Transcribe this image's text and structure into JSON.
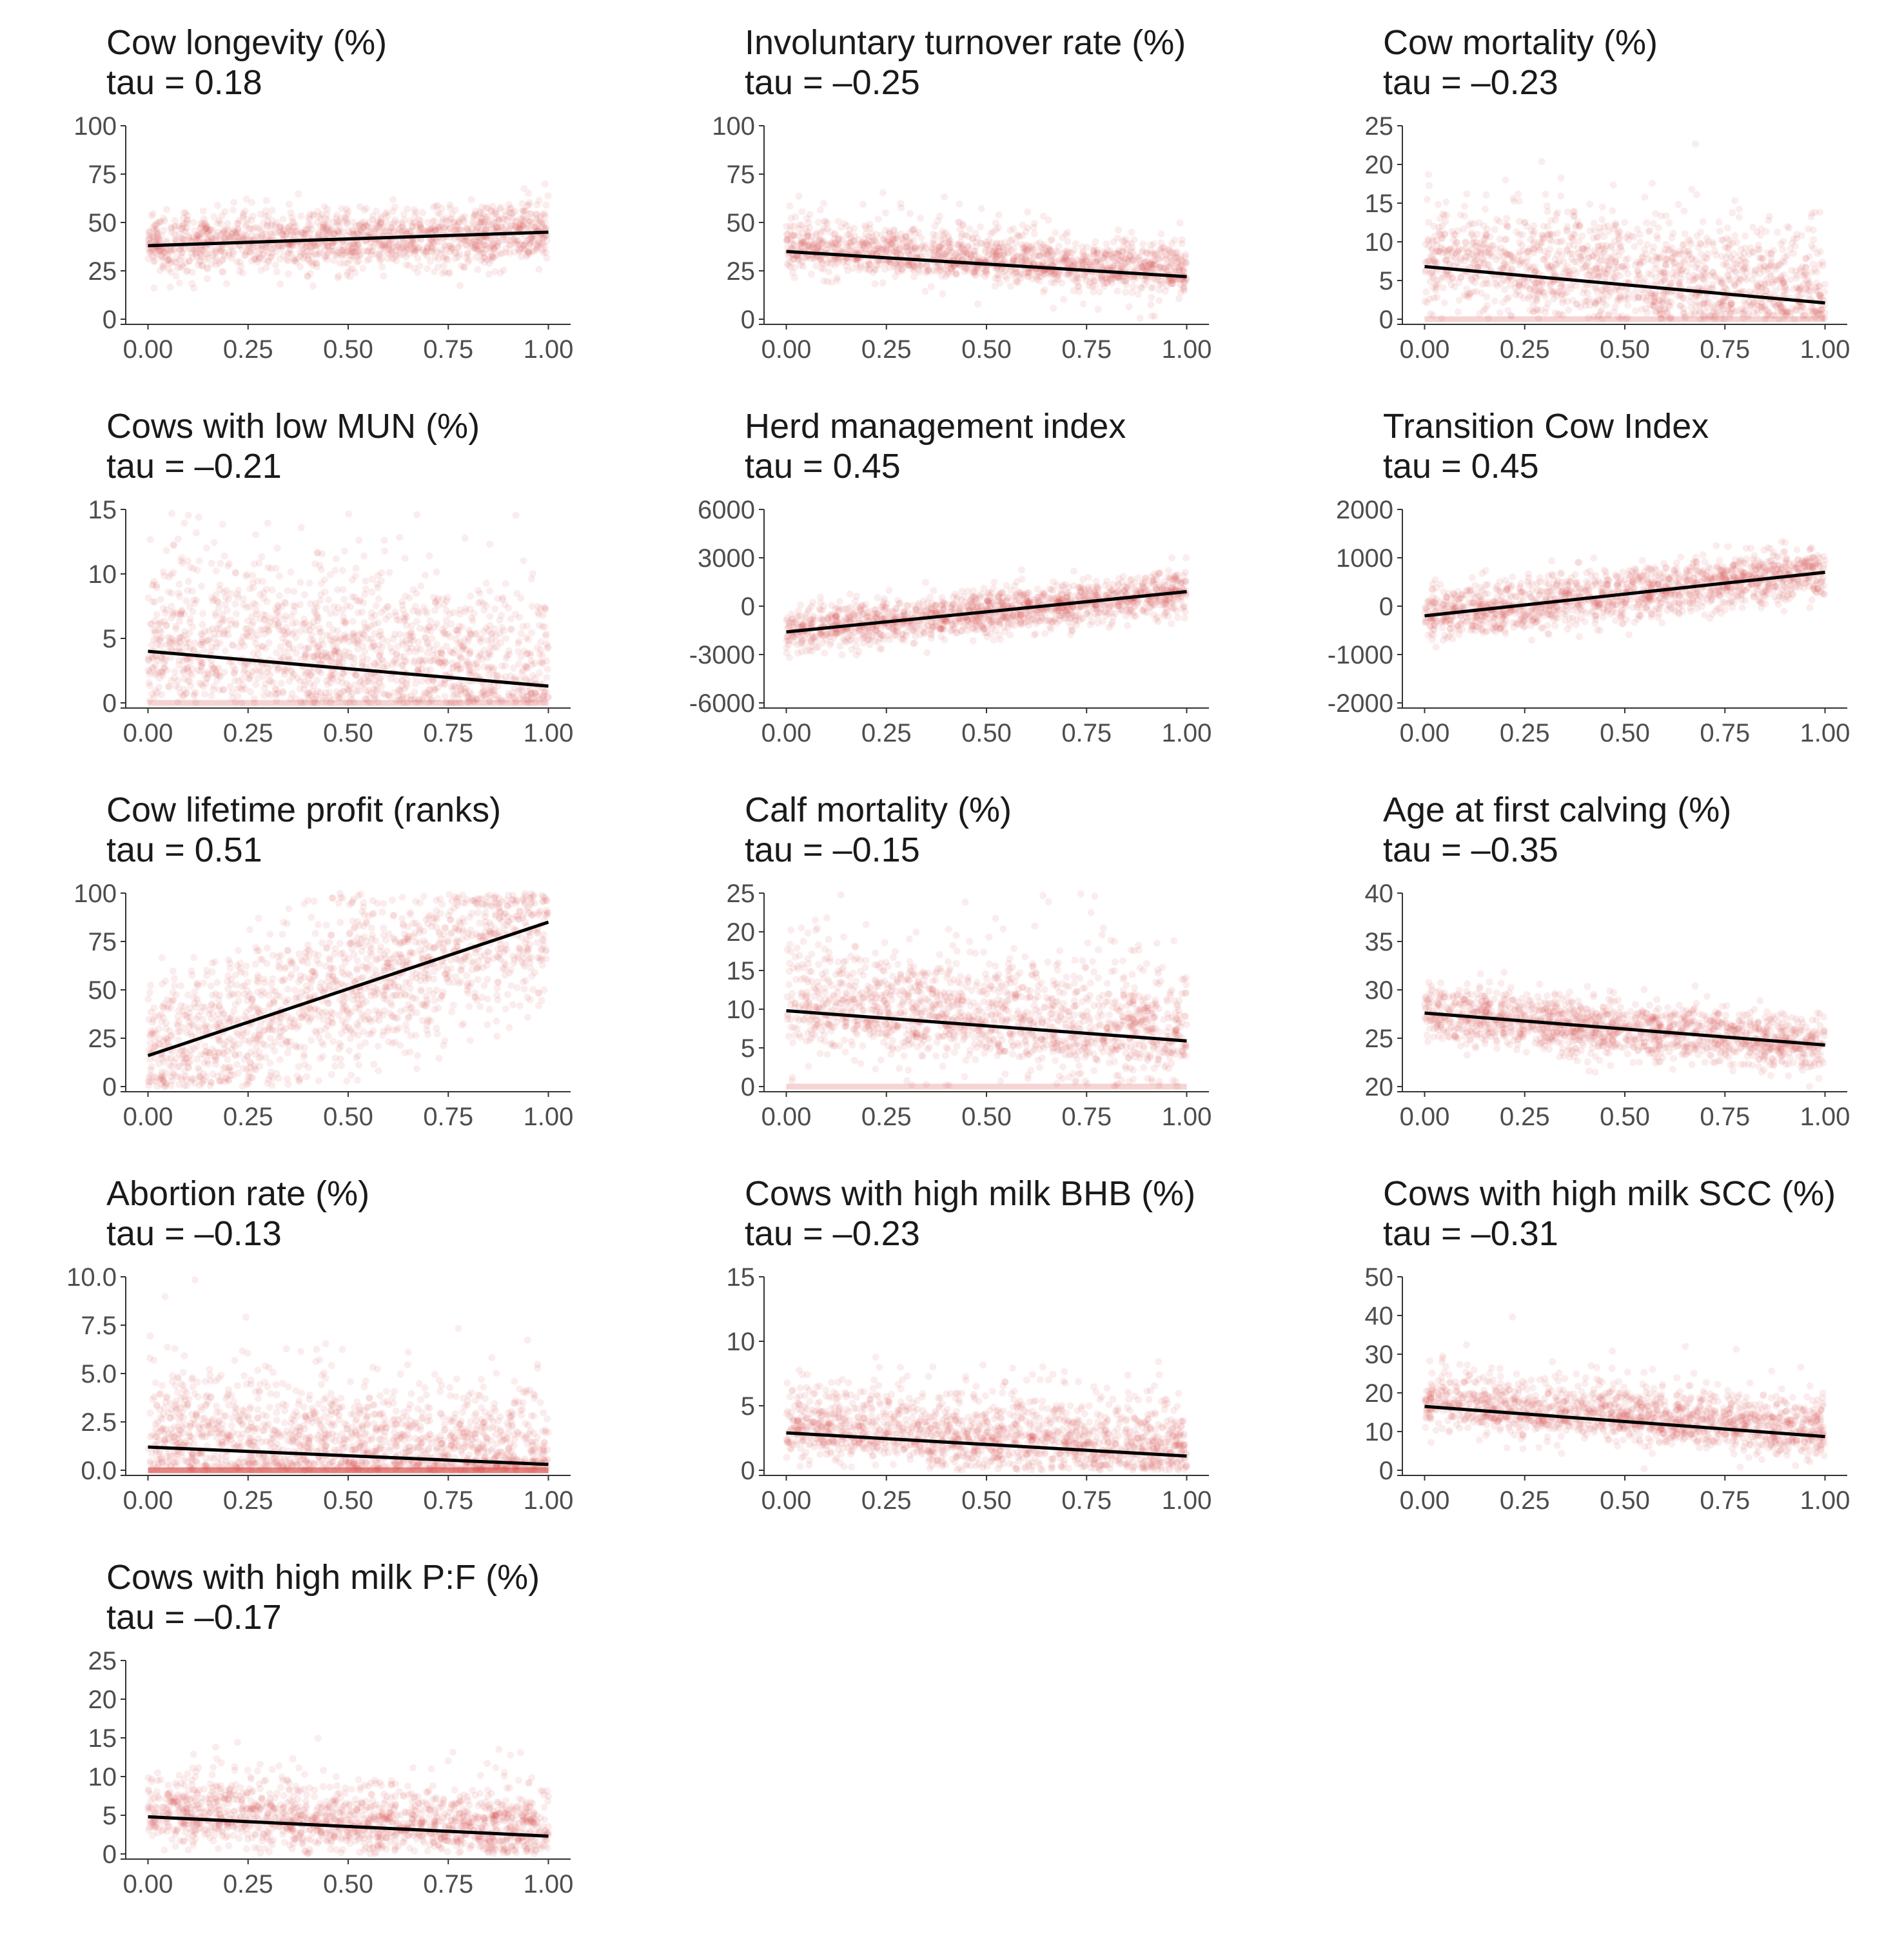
{
  "colors": {
    "points": "#d9534f",
    "line": "#000000",
    "axis": "#333333",
    "text": "#1a1a1a",
    "ticks": "#4d4d4d"
  },
  "chart_data": [
    {
      "type": "scatter",
      "title": "Cow longevity (%)",
      "tau_label": "tau = 0.18",
      "x_ticks": [
        "0.00",
        "0.25",
        "0.50",
        "0.75",
        "1.00"
      ],
      "xlim": [
        0,
        1
      ],
      "y_ticks": [
        {
          "value": 0,
          "label": "0"
        },
        {
          "value": 25,
          "label": "25"
        },
        {
          "value": 50,
          "label": "50"
        },
        {
          "value": 75,
          "label": "75"
        },
        {
          "value": 100,
          "label": "100"
        }
      ],
      "ylim": [
        0,
        100
      ],
      "trend": {
        "x": [
          0,
          1
        ],
        "y": [
          38,
          45
        ]
      },
      "spread": 8,
      "floor": null
    },
    {
      "type": "scatter",
      "title": "Involuntary turnover rate (%)",
      "tau_label": "tau = –0.25",
      "x_ticks": [
        "0.00",
        "0.25",
        "0.50",
        "0.75",
        "1.00"
      ],
      "xlim": [
        0,
        1
      ],
      "y_ticks": [
        {
          "value": 0,
          "label": "0"
        },
        {
          "value": 25,
          "label": "25"
        },
        {
          "value": 50,
          "label": "50"
        },
        {
          "value": 75,
          "label": "75"
        },
        {
          "value": 100,
          "label": "100"
        }
      ],
      "ylim": [
        0,
        100
      ],
      "trend": {
        "x": [
          0,
          1
        ],
        "y": [
          35,
          22
        ]
      },
      "spread": 8,
      "floor": 0
    },
    {
      "type": "scatter",
      "title": "Cow mortality (%)",
      "tau_label": "tau = –0.23",
      "x_ticks": [
        "0.00",
        "0.25",
        "0.50",
        "0.75",
        "1.00"
      ],
      "xlim": [
        0,
        1
      ],
      "y_ticks": [
        {
          "value": 0,
          "label": "0"
        },
        {
          "value": 5,
          "label": "5"
        },
        {
          "value": 10,
          "label": "10"
        },
        {
          "value": 15,
          "label": "15"
        },
        {
          "value": 20,
          "label": "20"
        },
        {
          "value": 25,
          "label": "25"
        }
      ],
      "ylim": [
        0,
        25
      ],
      "trend": {
        "x": [
          0,
          1
        ],
        "y": [
          6.8,
          2.1
        ]
      },
      "spread": 4,
      "floor": 0,
      "zero_band": true
    },
    {
      "type": "scatter",
      "title": "Cows with low MUN (%)",
      "tau_label": "tau = –0.21",
      "x_ticks": [
        "0.00",
        "0.25",
        "0.50",
        "0.75",
        "1.00"
      ],
      "xlim": [
        0,
        1
      ],
      "y_ticks": [
        {
          "value": 0,
          "label": "0"
        },
        {
          "value": 5,
          "label": "5"
        },
        {
          "value": 10,
          "label": "10"
        },
        {
          "value": 15,
          "label": "15"
        }
      ],
      "ylim": [
        0,
        15
      ],
      "trend": {
        "x": [
          0,
          1
        ],
        "y": [
          4,
          1.3
        ]
      },
      "spread": 3.5,
      "floor": 0,
      "zero_band": true
    },
    {
      "type": "scatter",
      "title": "Herd management index",
      "tau_label": "tau = 0.45",
      "x_ticks": [
        "0.00",
        "0.25",
        "0.50",
        "0.75",
        "1.00"
      ],
      "xlim": [
        0,
        1
      ],
      "y_ticks": [
        {
          "value": -6000,
          "label": "-6000"
        },
        {
          "value": -3000,
          "label": "-3000"
        },
        {
          "value": 0,
          "label": "0"
        },
        {
          "value": 3000,
          "label": "3000"
        },
        {
          "value": 6000,
          "label": "6000"
        }
      ],
      "ylim": [
        -6000,
        6000
      ],
      "trend": {
        "x": [
          0,
          1
        ],
        "y": [
          -1600,
          900
        ]
      },
      "spread": 700,
      "floor": null
    },
    {
      "type": "scatter",
      "title": "Transition Cow Index",
      "tau_label": "tau = 0.45",
      "x_ticks": [
        "0.00",
        "0.25",
        "0.50",
        "0.75",
        "1.00"
      ],
      "xlim": [
        0,
        1
      ],
      "y_ticks": [
        {
          "value": -2000,
          "label": "-2000"
        },
        {
          "value": -1000,
          "label": "-1000"
        },
        {
          "value": 0,
          "label": "0"
        },
        {
          "value": 1000,
          "label": "1000"
        },
        {
          "value": 2000,
          "label": "2000"
        }
      ],
      "ylim": [
        -2000,
        2000
      ],
      "trend": {
        "x": [
          0,
          1
        ],
        "y": [
          -200,
          700
        ]
      },
      "spread": 280,
      "floor": null
    },
    {
      "type": "scatter",
      "title": "Cow lifetime profit (ranks)",
      "tau_label": "tau = 0.51",
      "x_ticks": [
        "0.00",
        "0.25",
        "0.50",
        "0.75",
        "1.00"
      ],
      "xlim": [
        0,
        1
      ],
      "y_ticks": [
        {
          "value": 0,
          "label": "0"
        },
        {
          "value": 25,
          "label": "25"
        },
        {
          "value": 50,
          "label": "50"
        },
        {
          "value": 75,
          "label": "75"
        },
        {
          "value": 100,
          "label": "100"
        }
      ],
      "ylim": [
        0,
        100
      ],
      "trend": {
        "x": [
          0,
          1
        ],
        "y": [
          16,
          85
        ]
      },
      "spread": 20,
      "floor": 0,
      "ceil": 100
    },
    {
      "type": "scatter",
      "title": "Calf mortality (%)",
      "tau_label": "tau = –0.15",
      "x_ticks": [
        "0.00",
        "0.25",
        "0.50",
        "0.75",
        "1.00"
      ],
      "xlim": [
        0,
        1
      ],
      "y_ticks": [
        {
          "value": 0,
          "label": "0"
        },
        {
          "value": 5,
          "label": "5"
        },
        {
          "value": 10,
          "label": "10"
        },
        {
          "value": 15,
          "label": "15"
        },
        {
          "value": 20,
          "label": "20"
        },
        {
          "value": 25,
          "label": "25"
        }
      ],
      "ylim": [
        0,
        25
      ],
      "trend": {
        "x": [
          0,
          1
        ],
        "y": [
          9.8,
          5.9
        ]
      },
      "spread": 4.5,
      "floor": 0,
      "zero_band": true
    },
    {
      "type": "scatter",
      "title": "Age at first calving (%)",
      "tau_label": "tau = –0.35",
      "x_ticks": [
        "0.00",
        "0.25",
        "0.50",
        "0.75",
        "1.00"
      ],
      "xlim": [
        0,
        1
      ],
      "y_ticks": [
        {
          "value": 20,
          "label": "20"
        },
        {
          "value": 25,
          "label": "25"
        },
        {
          "value": 30,
          "label": "30"
        },
        {
          "value": 35,
          "label": "35"
        },
        {
          "value": 40,
          "label": "40"
        }
      ],
      "ylim": [
        20,
        40
      ],
      "trend": {
        "x": [
          0,
          1
        ],
        "y": [
          27.6,
          24.3
        ]
      },
      "spread": 1.5,
      "floor": null
    },
    {
      "type": "scatter",
      "title": "Abortion rate (%)",
      "tau_label": "tau = –0.13",
      "x_ticks": [
        "0.00",
        "0.25",
        "0.50",
        "0.75",
        "1.00"
      ],
      "xlim": [
        0,
        1
      ],
      "y_ticks": [
        {
          "value": 0,
          "label": "0.0"
        },
        {
          "value": 2.5,
          "label": "2.5"
        },
        {
          "value": 5,
          "label": "5.0"
        },
        {
          "value": 7.5,
          "label": "7.5"
        },
        {
          "value": 10,
          "label": "10.0"
        }
      ],
      "ylim": [
        0,
        10
      ],
      "trend": {
        "x": [
          0,
          1
        ],
        "y": [
          1.2,
          0.3
        ]
      },
      "spread": 1.8,
      "floor": 0,
      "zero_band": true,
      "zero_band_strong": true
    },
    {
      "type": "scatter",
      "title": "Cows with high milk BHB (%)",
      "tau_label": "tau = –0.23",
      "x_ticks": [
        "0.00",
        "0.25",
        "0.50",
        "0.75",
        "1.00"
      ],
      "xlim": [
        0,
        1
      ],
      "y_ticks": [
        {
          "value": 0,
          "label": "0"
        },
        {
          "value": 5,
          "label": "5"
        },
        {
          "value": 10,
          "label": "10"
        },
        {
          "value": 15,
          "label": "15"
        }
      ],
      "ylim": [
        0,
        15
      ],
      "trend": {
        "x": [
          0,
          1
        ],
        "y": [
          2.9,
          1.1
        ]
      },
      "spread": 1.8,
      "floor": 0
    },
    {
      "type": "scatter",
      "title": "Cows with high milk SCC (%)",
      "tau_label": "tau = –0.31",
      "x_ticks": [
        "0.00",
        "0.25",
        "0.50",
        "0.75",
        "1.00"
      ],
      "xlim": [
        0,
        1
      ],
      "y_ticks": [
        {
          "value": 0,
          "label": "0"
        },
        {
          "value": 10,
          "label": "10"
        },
        {
          "value": 20,
          "label": "20"
        },
        {
          "value": 30,
          "label": "30"
        },
        {
          "value": 40,
          "label": "40"
        },
        {
          "value": 50,
          "label": "50"
        }
      ],
      "ylim": [
        0,
        50
      ],
      "trend": {
        "x": [
          0,
          1
        ],
        "y": [
          16.5,
          8.7
        ]
      },
      "spread": 4.5,
      "floor": 0
    },
    {
      "type": "scatter",
      "title": "Cows with high milk P:F (%)",
      "tau_label": "tau = –0.17",
      "x_ticks": [
        "0.00",
        "0.25",
        "0.50",
        "0.75",
        "1.00"
      ],
      "xlim": [
        0,
        1
      ],
      "y_ticks": [
        {
          "value": 0,
          "label": "0"
        },
        {
          "value": 5,
          "label": "5"
        },
        {
          "value": 10,
          "label": "10"
        },
        {
          "value": 15,
          "label": "15"
        },
        {
          "value": 20,
          "label": "20"
        },
        {
          "value": 25,
          "label": "25"
        }
      ],
      "ylim": [
        0,
        25
      ],
      "trend": {
        "x": [
          0,
          1
        ],
        "y": [
          4.8,
          2.3
        ]
      },
      "spread": 2.8,
      "floor": 0
    }
  ]
}
